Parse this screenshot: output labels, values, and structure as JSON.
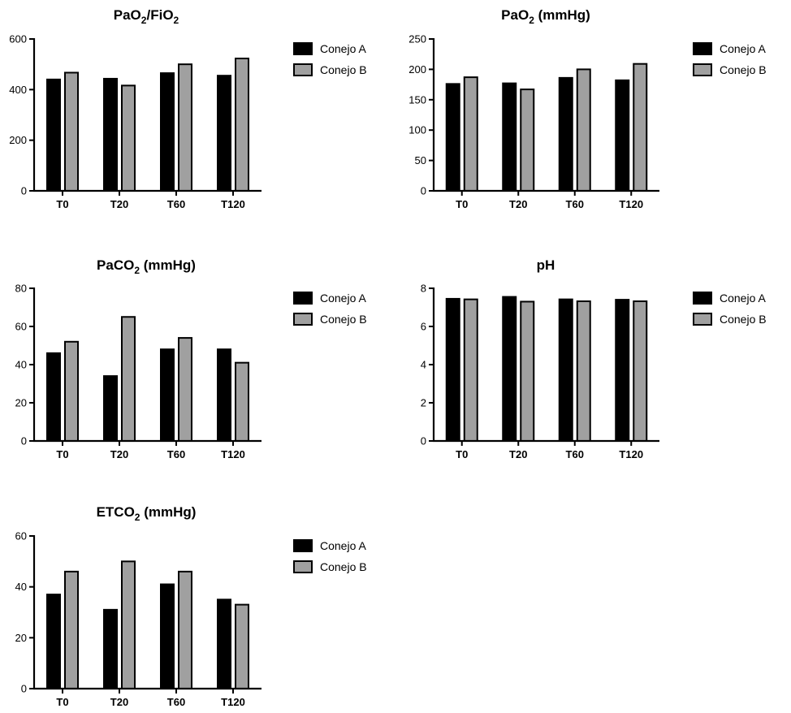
{
  "legend": {
    "series_a": "Conejo A",
    "series_b": "Conejo B",
    "color_a": "#000000",
    "color_b": "#a0a0a0"
  },
  "chart_data": [
    {
      "type": "bar",
      "title_main": "PaO",
      "title_sub": "2",
      "title_rest": "/FiO",
      "title_sub2": "2",
      "categories": [
        "T0",
        "T20",
        "T60",
        "T120"
      ],
      "ylim": [
        0,
        600
      ],
      "yticks": [
        "0",
        "200",
        "400",
        "600"
      ],
      "series": [
        {
          "name": "Conejo A",
          "values": [
            440,
            443,
            465,
            455
          ]
        },
        {
          "name": "Conejo B",
          "values": [
            467,
            416,
            500,
            523
          ]
        }
      ]
    },
    {
      "type": "bar",
      "title_main": "PaO",
      "title_sub": "2",
      "title_rest": " (mmHg)",
      "categories": [
        "T0",
        "T20",
        "T60",
        "T120"
      ],
      "ylim": [
        0,
        250
      ],
      "yticks": [
        "0",
        "50",
        "100",
        "150",
        "200",
        "250"
      ],
      "series": [
        {
          "name": "Conejo A",
          "values": [
            176,
            177,
            186,
            182
          ]
        },
        {
          "name": "Conejo B",
          "values": [
            187,
            167,
            200,
            209
          ]
        }
      ]
    },
    {
      "type": "bar",
      "title_main": "PaCO",
      "title_sub": "2",
      "title_rest": "  (mmHg)",
      "categories": [
        "T0",
        "T20",
        "T60",
        "T120"
      ],
      "ylim": [
        0,
        80
      ],
      "yticks": [
        "0",
        "20",
        "40",
        "60",
        "80"
      ],
      "series": [
        {
          "name": "Conejo A",
          "values": [
            46,
            34,
            48,
            48
          ]
        },
        {
          "name": "Conejo B",
          "values": [
            52,
            65,
            54,
            41
          ]
        }
      ]
    },
    {
      "type": "bar",
      "title_main": "pH",
      "categories": [
        "T0",
        "T20",
        "T60",
        "T120"
      ],
      "ylim": [
        0,
        8
      ],
      "yticks": [
        "0",
        "2",
        "4",
        "6",
        "8"
      ],
      "series": [
        {
          "name": "Conejo A",
          "values": [
            7.45,
            7.55,
            7.42,
            7.4
          ]
        },
        {
          "name": "Conejo B",
          "values": [
            7.42,
            7.3,
            7.32,
            7.32
          ]
        }
      ]
    },
    {
      "type": "bar",
      "title_main": "ETCO",
      "title_sub": "2",
      "title_rest": " (mmHg)",
      "categories": [
        "T0",
        "T20",
        "T60",
        "T120"
      ],
      "ylim": [
        0,
        60
      ],
      "yticks": [
        "0",
        "20",
        "40",
        "60"
      ],
      "series": [
        {
          "name": "Conejo A",
          "values": [
            37,
            31,
            41,
            35
          ]
        },
        {
          "name": "Conejo B",
          "values": [
            46,
            50,
            46,
            33
          ]
        }
      ]
    }
  ]
}
